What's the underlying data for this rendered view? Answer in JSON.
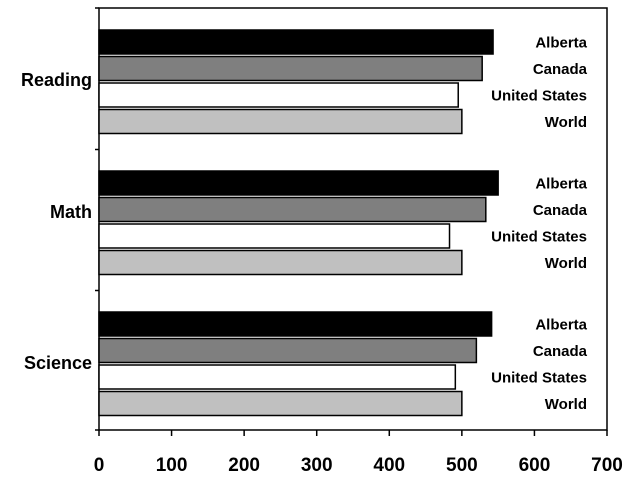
{
  "chart_data": {
    "type": "bar",
    "orientation": "horizontal",
    "categories": [
      "Reading",
      "Math",
      "Science"
    ],
    "series": [
      {
        "name": "Alberta",
        "color": "#000000",
        "values": [
          543,
          550,
          541
        ]
      },
      {
        "name": "Canada",
        "color": "#7f7f7f",
        "values": [
          528,
          533,
          520
        ]
      },
      {
        "name": "United States",
        "color": "#ffffff",
        "values": [
          495,
          483,
          491
        ]
      },
      {
        "name": "World",
        "color": "#c0c0c0",
        "values": [
          500,
          500,
          500
        ]
      }
    ],
    "xlim": [
      0,
      700
    ],
    "xticks": [
      "0",
      "100",
      "200",
      "300",
      "400",
      "500",
      "600",
      "700"
    ],
    "title": "",
    "xlabel": "",
    "ylabel": "",
    "grid": false,
    "legend": "series names printed next to each bar on the right"
  }
}
